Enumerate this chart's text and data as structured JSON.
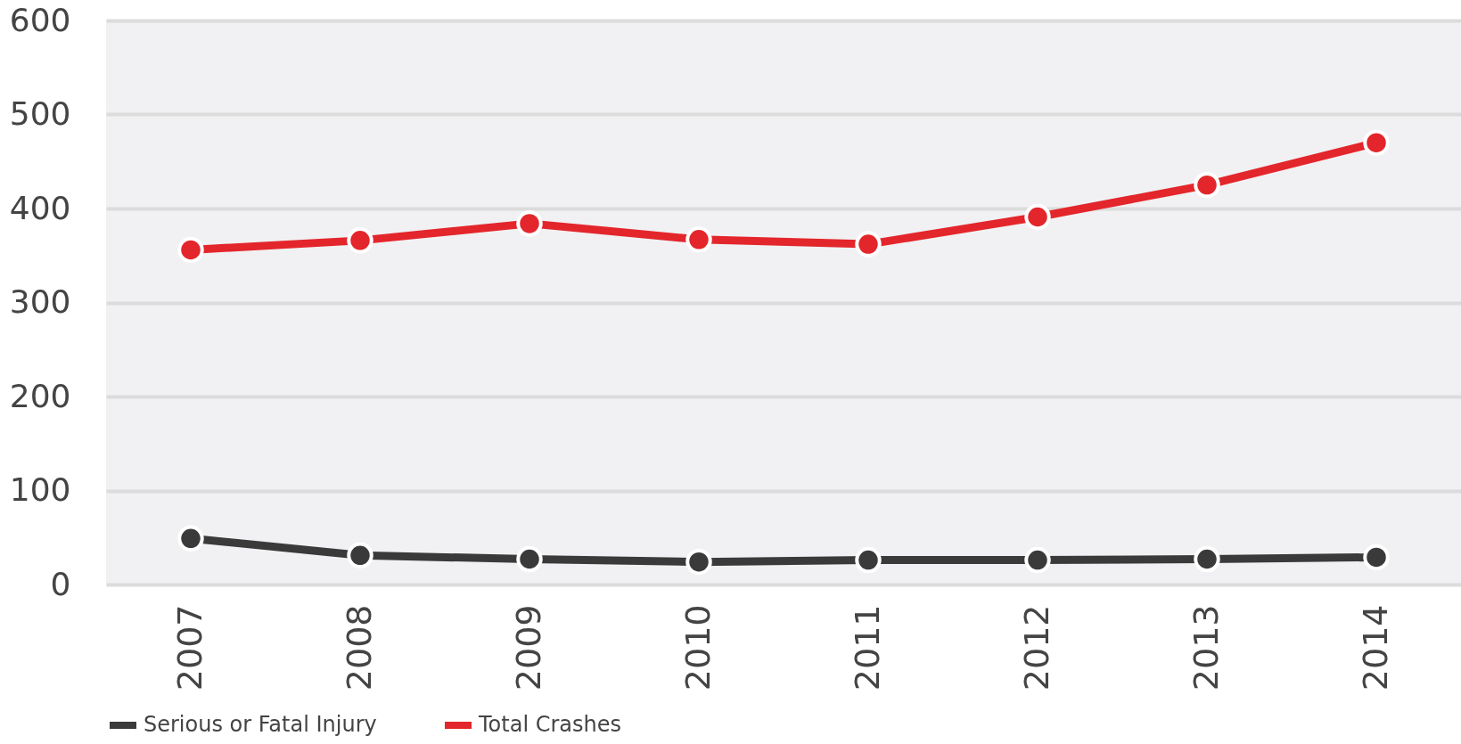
{
  "chart_data": {
    "type": "line",
    "categories": [
      "2007",
      "2008",
      "2009",
      "2010",
      "2011",
      "2012",
      "2013",
      "2014"
    ],
    "series": [
      {
        "name": "Serious or Fatal Injury",
        "color": "#3a3a3a",
        "values": [
          49,
          31,
          27,
          24,
          26,
          26,
          27,
          29
        ]
      },
      {
        "name": "Total Crashes",
        "color": "#e3262b",
        "values": [
          356,
          366,
          384,
          367,
          362,
          391,
          425,
          470
        ]
      }
    ],
    "ylim": [
      0,
      600
    ],
    "yticks": [
      0,
      100,
      200,
      300,
      400,
      500,
      600
    ],
    "grid": "y",
    "legend": "bottom",
    "marker": "circle",
    "line_style": "solid"
  }
}
